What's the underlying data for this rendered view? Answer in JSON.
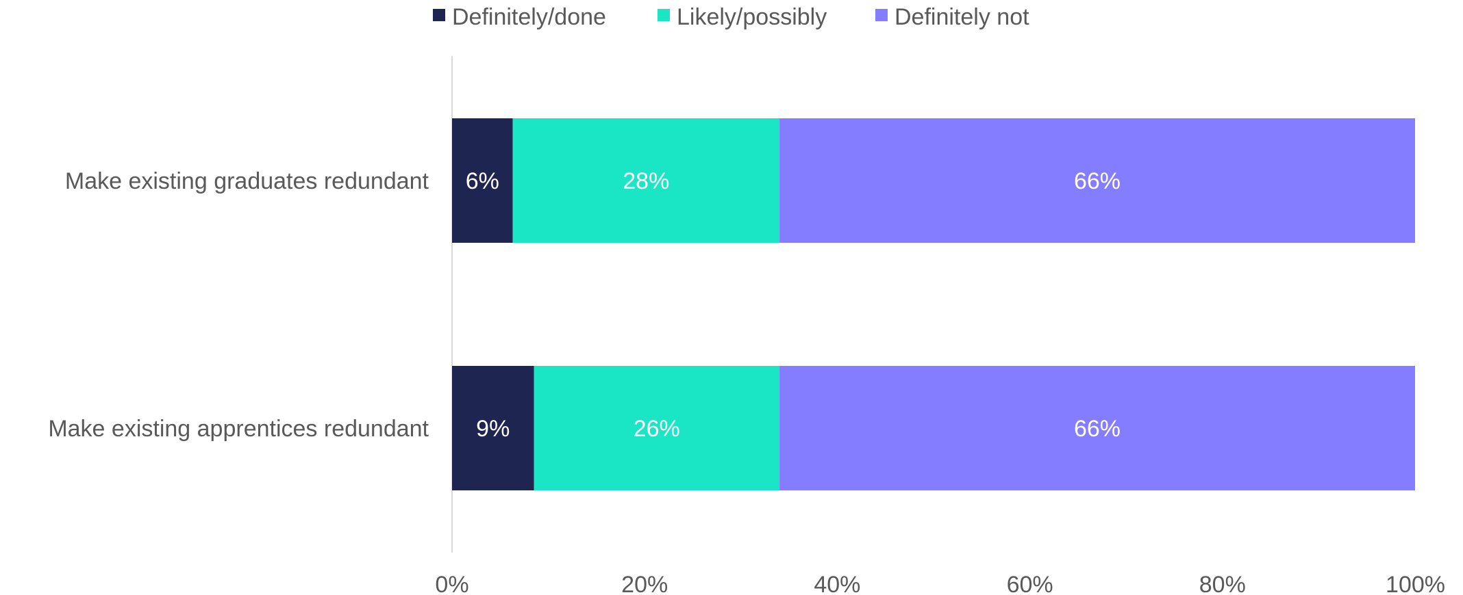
{
  "chart_data": {
    "type": "bar",
    "orientation": "horizontal",
    "stacked": true,
    "title": "",
    "xlabel": "",
    "ylabel": "",
    "xlim": [
      0,
      100
    ],
    "x_ticks": [
      "0%",
      "20%",
      "40%",
      "60%",
      "80%",
      "100%"
    ],
    "x_tick_values": [
      0,
      20,
      40,
      60,
      80,
      100
    ],
    "grid": false,
    "legend_position": "top",
    "categories": [
      "Make existing graduates redundant",
      "Make existing apprentices redundant"
    ],
    "series": [
      {
        "name": "Definitely/done",
        "color": "#1f2551",
        "values": [
          6.3,
          8.5
        ],
        "labels": [
          "6%",
          "9%"
        ]
      },
      {
        "name": "Likely/possibly",
        "color": "#1ae5c4",
        "values": [
          27.7,
          25.5
        ],
        "labels": [
          "28%",
          "26%"
        ]
      },
      {
        "name": "Definitely not",
        "color": "#857dff",
        "values": [
          66.0,
          66.0
        ],
        "labels": [
          "66%",
          "66%"
        ]
      }
    ]
  }
}
